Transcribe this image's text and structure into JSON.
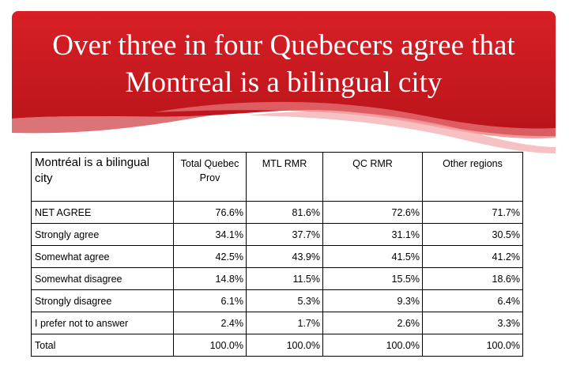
{
  "slide": {
    "title_line1": "Over three in four Quebecers agree that",
    "title_line2": "Montreal is a bilingual city"
  },
  "colors": {
    "banner_red": "#cc1a1f",
    "banner_dark": "#a80f14"
  },
  "chart_data": {
    "type": "table",
    "corner_label": "Montréal is a bilingual city",
    "columns": [
      "Total Quebec Prov",
      "MTL RMR",
      "QC RMR",
      "Other regions"
    ],
    "rows": [
      {
        "label": "NET AGREE",
        "values": [
          "76.6%",
          "81.6%",
          "72.6%",
          "71.7%"
        ]
      },
      {
        "label": "Strongly agree",
        "values": [
          "34.1%",
          "37.7%",
          "31.1%",
          "30.5%"
        ]
      },
      {
        "label": "Somewhat agree",
        "values": [
          "42.5%",
          "43.9%",
          "41.5%",
          "41.2%"
        ]
      },
      {
        "label": "Somewhat disagree",
        "values": [
          "14.8%",
          "11.5%",
          "15.5%",
          "18.6%"
        ]
      },
      {
        "label": "Strongly disagree",
        "values": [
          "6.1%",
          "5.3%",
          "9.3%",
          "6.4%"
        ]
      },
      {
        "label": "I prefer not to answer",
        "values": [
          "2.4%",
          "1.7%",
          "2.6%",
          "3.3%"
        ]
      },
      {
        "label": "Total",
        "values": [
          "100.0%",
          "100.0%",
          "100.0%",
          "100.0%"
        ]
      }
    ]
  }
}
